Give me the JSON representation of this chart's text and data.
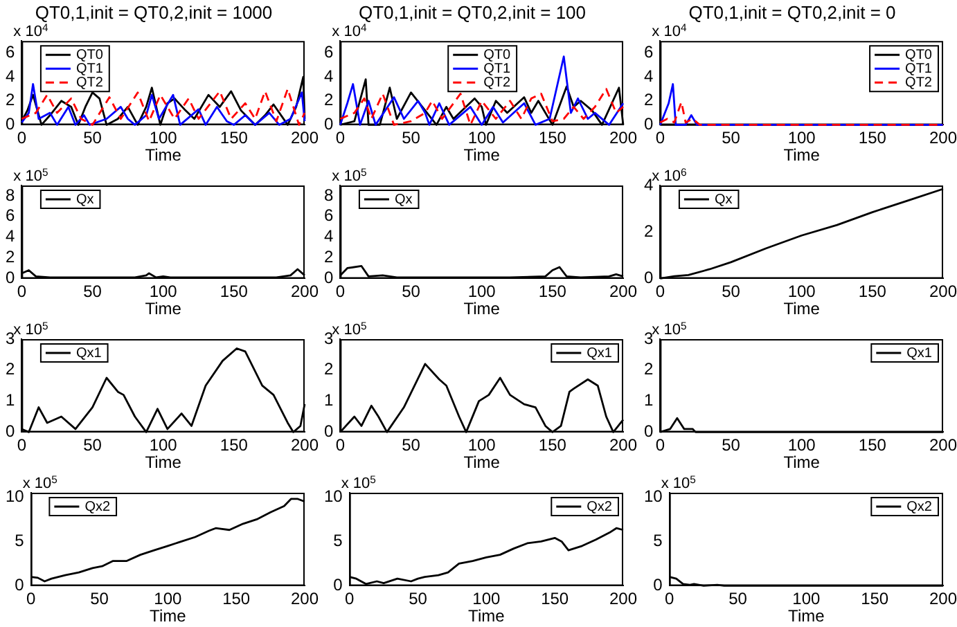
{
  "chart_data": [
    {
      "type": "line",
      "title": "QT0,1,init = QT0,2,init = 1000",
      "xlabel": "Time",
      "annotations": [
        "x 10$^{4}$"
      ],
      "xlim": [
        0,
        200
      ],
      "xticks": [
        0,
        50,
        100,
        150,
        200
      ],
      "ylim": [
        0,
        7
      ],
      "yticks": [
        0,
        2,
        4,
        6
      ],
      "legend": "top left",
      "series": [
        {
          "name": "QT0",
          "color": "#000000",
          "x": [
            0,
            4,
            8,
            14,
            20,
            28,
            35,
            40,
            45,
            50,
            55,
            60,
            68,
            75,
            82,
            88,
            92,
            98,
            103,
            108,
            115,
            122,
            132,
            140,
            148,
            155,
            165,
            172,
            178,
            188,
            194,
            199,
            200
          ],
          "values": [
            0.3,
            1.2,
            2.5,
            0,
            0.8,
            2,
            1.5,
            0,
            1.5,
            2.7,
            2.2,
            0,
            0.5,
            1.5,
            0,
            1.5,
            3.1,
            0,
            1.8,
            2.2,
            1.3,
            0.5,
            2.5,
            1.5,
            2.8,
            1.2,
            0,
            0.8,
            1.7,
            0,
            1.5,
            4,
            0.5
          ]
        },
        {
          "name": "QT1",
          "color": "#0000ff",
          "x": [
            0,
            5,
            8,
            12,
            20,
            25,
            33,
            38,
            44,
            48,
            60,
            70,
            75,
            80,
            88,
            92,
            97,
            107,
            112,
            125,
            130,
            138,
            145,
            150,
            158,
            165,
            175,
            182,
            190,
            198,
            200
          ],
          "values": [
            0.2,
            1,
            3.4,
            0.5,
            1,
            0,
            1.5,
            0,
            0.8,
            0,
            0.5,
            1.5,
            0.5,
            0,
            0.8,
            2.5,
            0.5,
            2.5,
            0,
            1.3,
            0,
            1.5,
            0.3,
            0,
            0.8,
            0,
            1,
            0,
            0.5,
            2.7,
            0.3
          ]
        },
        {
          "name": "QT2",
          "color": "#ff0000",
          "line_style": "dashed",
          "x": [
            0,
            10,
            18,
            25,
            35,
            42,
            50,
            62,
            70,
            82,
            90,
            98,
            108,
            118,
            125,
            140,
            148,
            158,
            165,
            172,
            180,
            188,
            196,
            200
          ],
          "values": [
            0.5,
            1,
            2.5,
            1,
            2.2,
            0.5,
            0,
            2.3,
            0.5,
            2.7,
            0.3,
            2.5,
            0.5,
            2.2,
            0.5,
            2.8,
            0.5,
            1.8,
            0.5,
            2.8,
            0.3,
            3,
            0,
            1
          ]
        }
      ]
    },
    {
      "type": "line",
      "title": "QT0,1,init = QT0,2,init = 100",
      "xlabel": "Time",
      "annotations": [
        "x 10$^{4}$"
      ],
      "xlim": [
        0,
        200
      ],
      "xticks": [
        0,
        50,
        100,
        150,
        200
      ],
      "ylim": [
        0,
        7
      ],
      "yticks": [
        0,
        2,
        4,
        6
      ],
      "legend": "top",
      "series": [
        {
          "name": "QT0",
          "color": "#000000",
          "x": [
            0,
            10,
            18,
            20,
            28,
            35,
            40,
            50,
            58,
            68,
            75,
            80,
            95,
            100,
            103,
            110,
            118,
            130,
            135,
            140,
            150,
            160,
            165,
            170,
            178,
            185,
            197,
            200
          ],
          "values": [
            0,
            0.3,
            3.8,
            0,
            0,
            3.1,
            0.5,
            2.7,
            1.5,
            0,
            1.5,
            0.5,
            2.2,
            1.5,
            0,
            2,
            1,
            2.3,
            1,
            2,
            0,
            3.2,
            1.5,
            2,
            1.2,
            0,
            3.1,
            0
          ]
        },
        {
          "name": "QT1",
          "color": "#0000ff",
          "x": [
            0,
            5,
            9,
            14,
            20,
            25,
            38,
            45,
            55,
            60,
            63,
            70,
            77,
            92,
            100,
            108,
            115,
            130,
            138,
            148,
            158,
            163,
            168,
            175,
            180,
            190,
            200
          ],
          "values": [
            0,
            1.8,
            3.4,
            0,
            2,
            0,
            2.3,
            0.5,
            2,
            1,
            0,
            1.8,
            0,
            1.5,
            0,
            1.5,
            0.2,
            1.8,
            0,
            0.5,
            5.7,
            1,
            2.2,
            0.5,
            1,
            0,
            1.8
          ]
        },
        {
          "name": "QT2",
          "color": "#ff0000",
          "line_style": "dashed",
          "x": [
            0,
            10,
            17,
            22,
            30,
            38,
            50,
            60,
            65,
            72,
            85,
            92,
            100,
            110,
            120,
            128,
            135,
            142,
            150,
            158,
            165,
            172,
            180,
            188,
            195,
            200
          ],
          "values": [
            0.5,
            1,
            2.2,
            0.5,
            2.6,
            0,
            0.3,
            1,
            2,
            0.5,
            2.6,
            0,
            2,
            0.5,
            2,
            0.5,
            2.2,
            2.6,
            0.3,
            0.5,
            1.5,
            0.5,
            1.5,
            3,
            1,
            1.5
          ]
        }
      ]
    },
    {
      "type": "line",
      "title": "QT0,1,init = QT0,2,init = 0",
      "xlabel": "Time",
      "annotations": [
        "x 10$^{4}$"
      ],
      "xlim": [
        0,
        200
      ],
      "xticks": [
        0,
        50,
        100,
        150,
        200
      ],
      "ylim": [
        0,
        7
      ],
      "yticks": [
        0,
        2,
        4,
        6
      ],
      "legend": "top right",
      "series": [
        {
          "name": "QT0",
          "color": "#000000",
          "x": [
            0,
            200
          ],
          "values": [
            0,
            0
          ]
        },
        {
          "name": "QT1",
          "color": "#0000ff",
          "x": [
            0,
            6,
            9,
            11,
            18,
            22,
            26,
            200
          ],
          "values": [
            0,
            1.8,
            3.4,
            0,
            0,
            0.8,
            0,
            0
          ]
        },
        {
          "name": "QT2",
          "color": "#ff0000",
          "line_style": "dashed",
          "x": [
            0,
            5,
            10,
            15,
            18,
            23,
            28,
            200
          ],
          "values": [
            0.2,
            0.5,
            0.2,
            1.9,
            0.2,
            0.5,
            0,
            0
          ]
        }
      ]
    },
    {
      "type": "line",
      "xlabel": "Time",
      "annotations": [
        "x 10$^{5}$"
      ],
      "xlim": [
        0,
        200
      ],
      "xticks": [
        0,
        50,
        100,
        150,
        200
      ],
      "ylim": [
        0,
        9
      ],
      "yticks": [
        0,
        2,
        4,
        6,
        8
      ],
      "legend": "top left",
      "series": [
        {
          "name": "Qx",
          "color": "#000000",
          "x": [
            0,
            5,
            10,
            20,
            40,
            60,
            80,
            88,
            90,
            95,
            100,
            105,
            120,
            150,
            180,
            190,
            195,
            200
          ],
          "values": [
            0.5,
            0.8,
            0.2,
            0.1,
            0.1,
            0.1,
            0.1,
            0.3,
            0.5,
            0.1,
            0.2,
            0.1,
            0.1,
            0.1,
            0.1,
            0.3,
            0.9,
            0.3
          ]
        }
      ]
    },
    {
      "type": "line",
      "xlabel": "Time",
      "annotations": [
        "x 10$^{5}$"
      ],
      "xlim": [
        0,
        200
      ],
      "xticks": [
        0,
        50,
        100,
        150,
        200
      ],
      "ylim": [
        0,
        9
      ],
      "yticks": [
        0,
        2,
        4,
        6,
        8
      ],
      "legend": "top left",
      "series": [
        {
          "name": "Qx",
          "color": "#000000",
          "x": [
            0,
            5,
            15,
            20,
            30,
            40,
            80,
            120,
            145,
            150,
            155,
            160,
            170,
            190,
            195,
            200
          ],
          "values": [
            0.3,
            1,
            1.2,
            0.2,
            0.3,
            0.1,
            0.1,
            0.1,
            0.2,
            0.8,
            1.1,
            0.2,
            0.1,
            0.2,
            0.4,
            0.2
          ]
        }
      ]
    },
    {
      "type": "line",
      "xlabel": "Time",
      "annotations": [
        "x 10$^{6}$"
      ],
      "xlim": [
        0,
        200
      ],
      "xticks": [
        0,
        50,
        100,
        150,
        200
      ],
      "ylim": [
        0,
        4
      ],
      "yticks": [
        0,
        2,
        4
      ],
      "legend": "top left",
      "series": [
        {
          "name": "Qx",
          "color": "#000000",
          "x": [
            0,
            10,
            20,
            35,
            50,
            75,
            100,
            125,
            150,
            175,
            200
          ],
          "values": [
            0,
            0.1,
            0.15,
            0.4,
            0.7,
            1.3,
            1.85,
            2.3,
            2.85,
            3.35,
            3.85
          ]
        }
      ]
    },
    {
      "type": "line",
      "xlabel": "Time",
      "annotations": [
        "x 10$^{5}$"
      ],
      "xlim": [
        0,
        200
      ],
      "xticks": [
        0,
        50,
        100,
        150,
        200
      ],
      "ylim": [
        0,
        3
      ],
      "yticks": [
        0,
        1,
        2,
        3
      ],
      "legend": "top left",
      "series": [
        {
          "name": "Qx1",
          "color": "#000000",
          "x": [
            0,
            5,
            12,
            18,
            28,
            38,
            50,
            60,
            68,
            72,
            80,
            88,
            96,
            103,
            113,
            120,
            130,
            142,
            152,
            158,
            170,
            178,
            188,
            192,
            197,
            200
          ],
          "values": [
            0.1,
            0,
            0.8,
            0.3,
            0.5,
            0.1,
            0.8,
            1.75,
            1.3,
            1.2,
            0.5,
            0,
            0.75,
            0.1,
            0.6,
            0.2,
            1.5,
            2.3,
            2.7,
            2.6,
            1.5,
            1.2,
            0.3,
            0,
            0.2,
            0.9
          ]
        }
      ]
    },
    {
      "type": "line",
      "xlabel": "Time",
      "annotations": [
        "x 10$^{5}$"
      ],
      "xlim": [
        0,
        200
      ],
      "xticks": [
        0,
        50,
        100,
        150,
        200
      ],
      "ylim": [
        0,
        3
      ],
      "yticks": [
        0,
        1,
        2,
        3
      ],
      "legend": "top right",
      "series": [
        {
          "name": "Qx1",
          "color": "#000000",
          "x": [
            0,
            10,
            15,
            22,
            27,
            33,
            45,
            60,
            70,
            75,
            84,
            89,
            98,
            105,
            113,
            120,
            130,
            138,
            145,
            150,
            156,
            162,
            165,
            175,
            182,
            188,
            193,
            200
          ],
          "values": [
            0,
            0.5,
            0.2,
            0.85,
            0.5,
            0,
            0.8,
            2.2,
            1.7,
            1.5,
            0.5,
            0,
            1,
            1.2,
            1.75,
            1.2,
            0.9,
            0.8,
            0.2,
            0,
            0.2,
            1.3,
            1.4,
            1.7,
            1.5,
            0.5,
            0,
            0.4
          ]
        }
      ]
    },
    {
      "type": "line",
      "xlabel": "Time",
      "annotations": [
        "x 10$^{5}$"
      ],
      "xlim": [
        0,
        200
      ],
      "xticks": [
        0,
        50,
        100,
        150,
        200
      ],
      "ylim": [
        0,
        3
      ],
      "yticks": [
        0,
        1,
        2,
        3
      ],
      "legend": "top right",
      "series": [
        {
          "name": "Qx1",
          "color": "#000000",
          "x": [
            0,
            7,
            12,
            17,
            23,
            25,
            200
          ],
          "values": [
            0,
            0.1,
            0.45,
            0.1,
            0.1,
            0,
            0
          ]
        }
      ]
    },
    {
      "type": "line",
      "xlabel": "Time",
      "annotations": [
        "x 10$^{5}$"
      ],
      "xlim": [
        0,
        200
      ],
      "xticks": [
        0,
        50,
        100,
        150,
        200
      ],
      "ylim": [
        0,
        10.5
      ],
      "yticks": [
        0,
        5,
        10
      ],
      "legend": "top left",
      "series": [
        {
          "name": "Qx2",
          "color": "#000000",
          "x": [
            0,
            5,
            10,
            15,
            25,
            35,
            45,
            52,
            60,
            70,
            80,
            90,
            100,
            110,
            120,
            130,
            135,
            145,
            155,
            165,
            175,
            185,
            190,
            195,
            200
          ],
          "values": [
            1,
            0.9,
            0.5,
            0.8,
            1.2,
            1.5,
            2,
            2.2,
            2.8,
            2.8,
            3.5,
            4,
            4.5,
            5,
            5.5,
            6.2,
            6.5,
            6.3,
            7,
            7.5,
            8.3,
            9,
            9.8,
            9.8,
            9.5
          ]
        }
      ]
    },
    {
      "type": "line",
      "xlabel": "Time",
      "annotations": [
        "x 10$^{5}$"
      ],
      "xlim": [
        0,
        200
      ],
      "xticks": [
        0,
        50,
        100,
        150,
        200
      ],
      "ylim": [
        0,
        10.5
      ],
      "yticks": [
        0,
        5,
        10
      ],
      "legend": "top right",
      "series": [
        {
          "name": "Qx2",
          "color": "#000000",
          "x": [
            0,
            5,
            12,
            20,
            25,
            35,
            45,
            50,
            55,
            65,
            72,
            80,
            90,
            100,
            110,
            120,
            130,
            140,
            150,
            155,
            160,
            170,
            180,
            190,
            195,
            200
          ],
          "values": [
            1,
            0.8,
            0.2,
            0.5,
            0.3,
            0.8,
            0.5,
            0.8,
            1,
            1.2,
            1.5,
            2.5,
            2.8,
            3.2,
            3.5,
            4.2,
            4.8,
            5,
            5.4,
            5,
            4,
            4.5,
            5.2,
            6,
            6.5,
            6.3
          ]
        }
      ]
    },
    {
      "type": "line",
      "xlabel": "Time",
      "annotations": [
        "x 10$^{5}$"
      ],
      "xlim": [
        0,
        200
      ],
      "xticks": [
        0,
        50,
        100,
        150,
        200
      ],
      "ylim": [
        0,
        10.5
      ],
      "yticks": [
        0,
        5,
        10
      ],
      "legend": "top right",
      "series": [
        {
          "name": "Qx2",
          "color": "#000000",
          "x": [
            0,
            5,
            10,
            15,
            18,
            25,
            35,
            40,
            200
          ],
          "values": [
            1,
            0.8,
            0.2,
            0.1,
            0.2,
            0,
            0.1,
            0,
            0
          ]
        }
      ]
    }
  ]
}
